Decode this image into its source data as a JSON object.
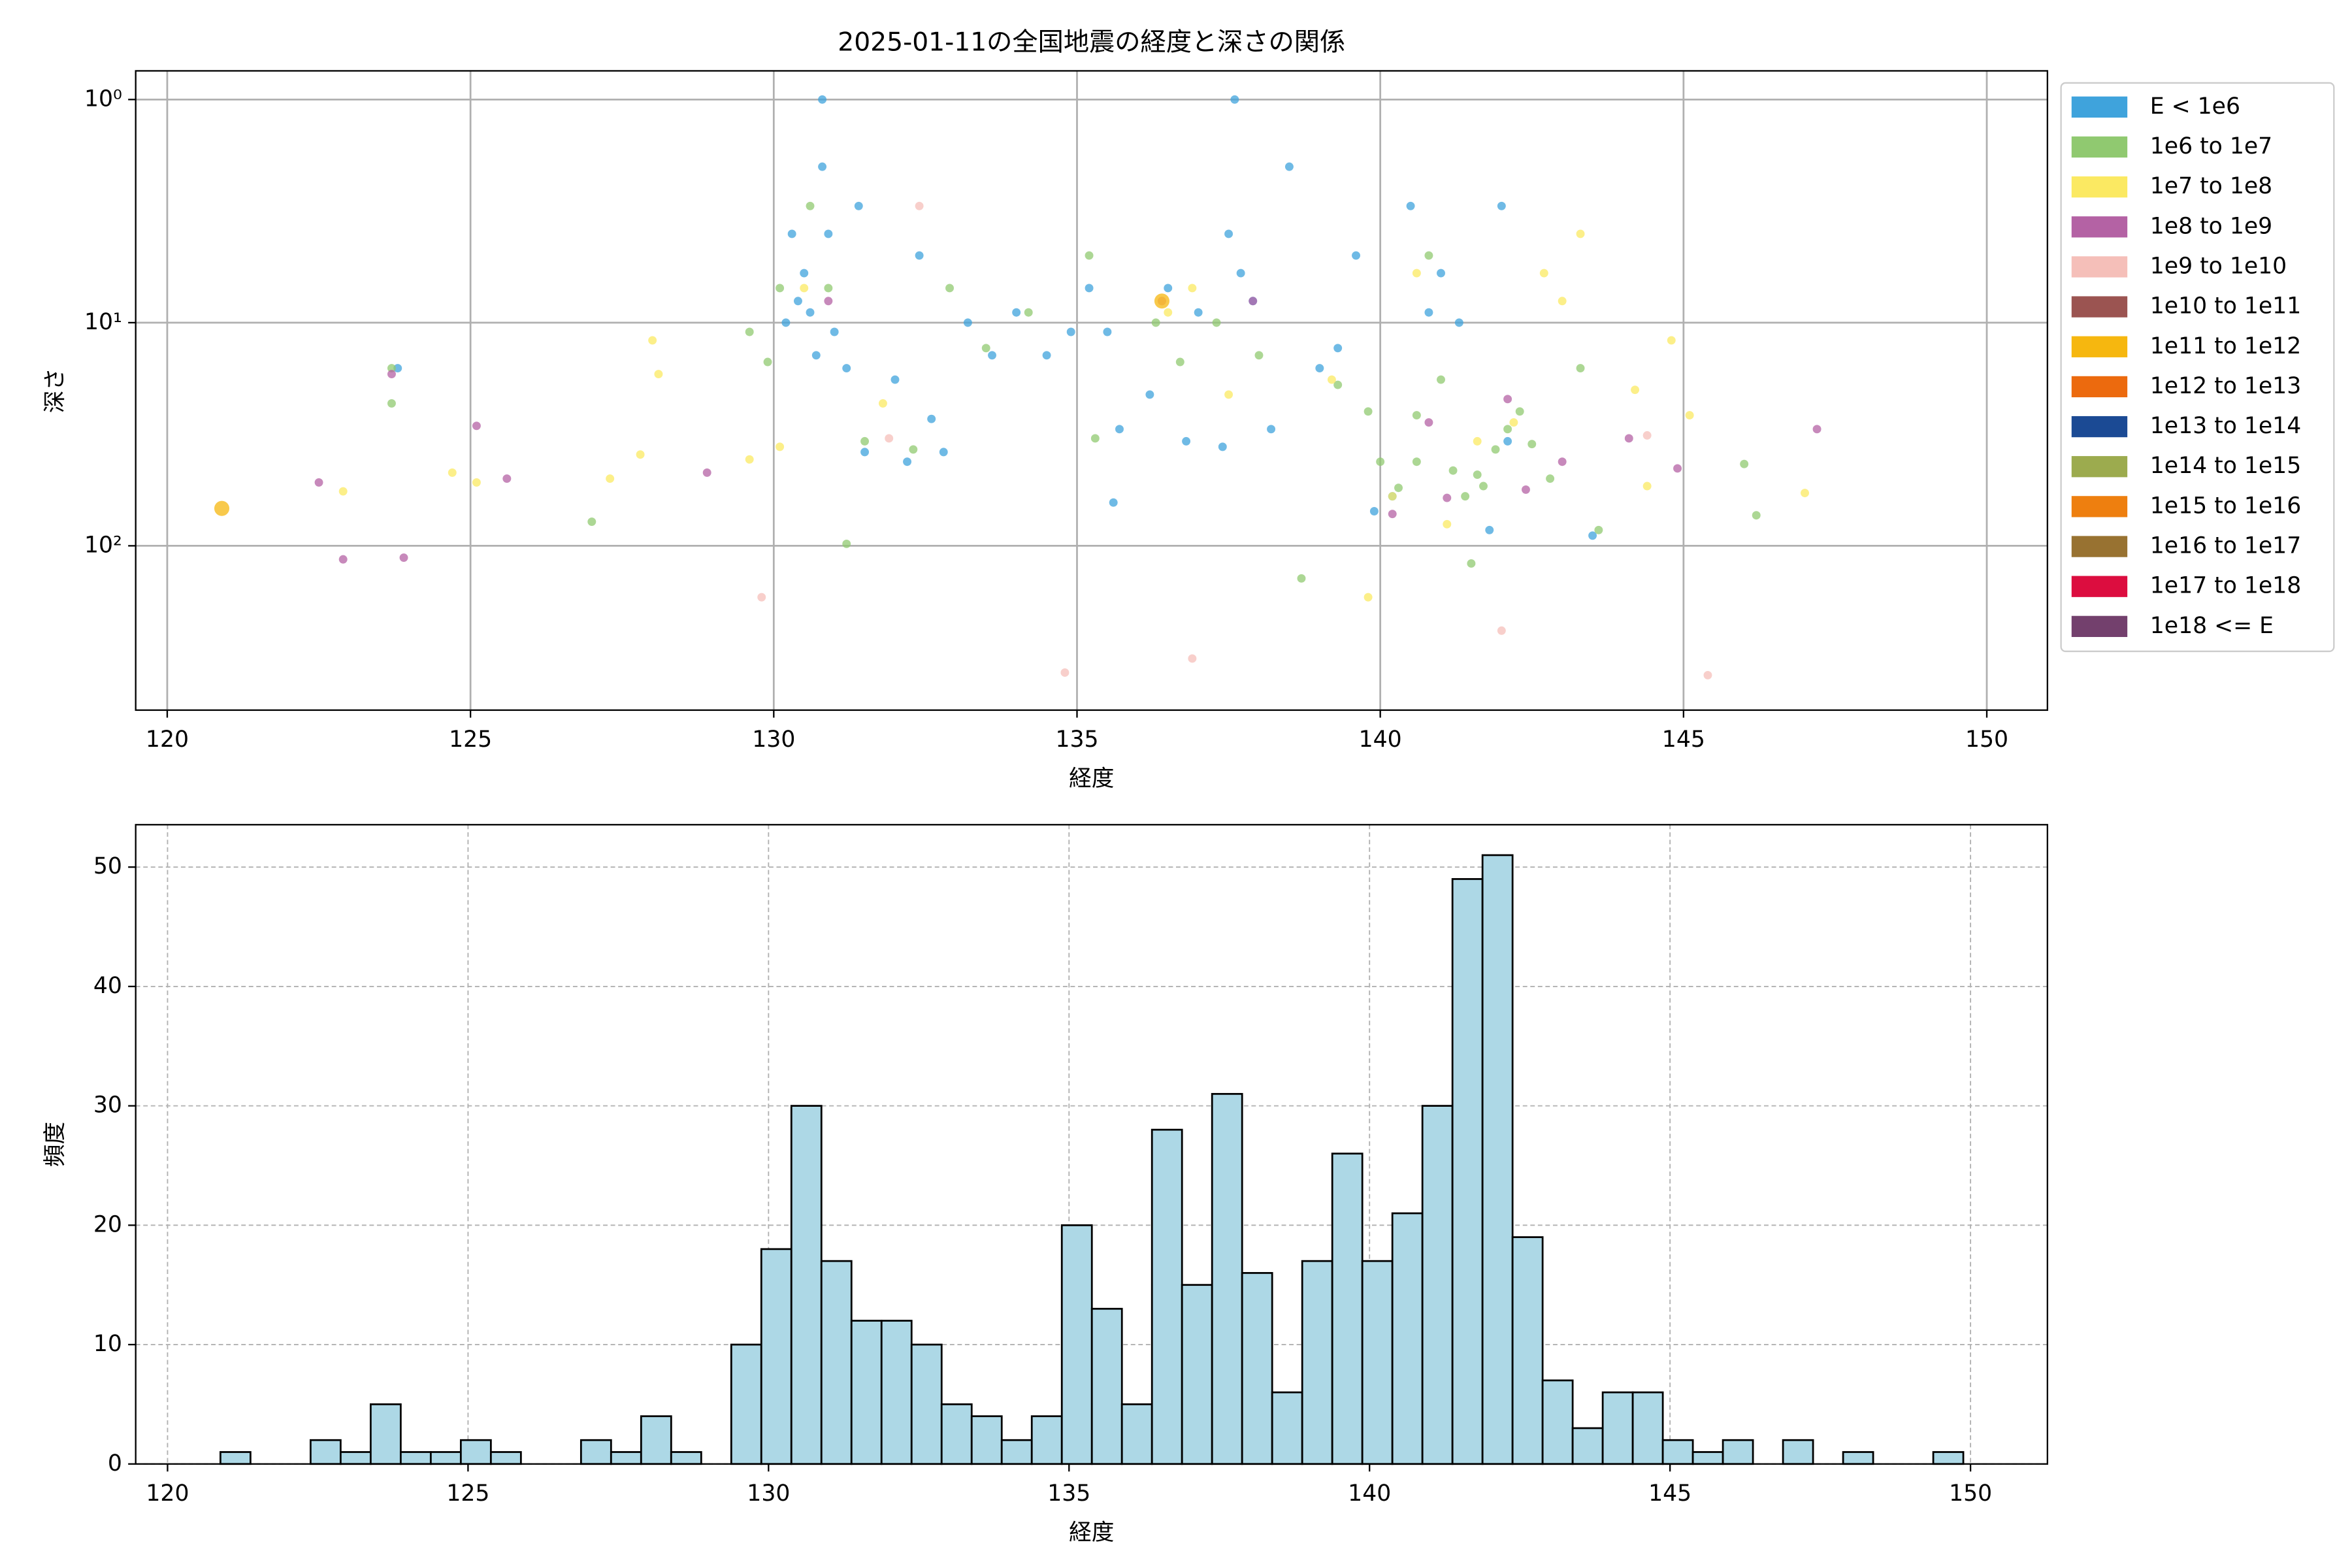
{
  "chart_data": [
    {
      "type": "scatter",
      "title": "2025-01-11の全国地震の経度と深さの関係",
      "xlabel": "経度",
      "ylabel": "深さ",
      "xlim": [
        119.48,
        151.0
      ],
      "xticks": [
        120,
        125,
        130,
        135,
        140,
        145,
        150
      ],
      "ylim": [
        545,
        0.744
      ],
      "log_y": true,
      "yticks": [
        {
          "value": 1,
          "label": "10⁰"
        },
        {
          "value": 10,
          "label": "10¹"
        },
        {
          "value": 100,
          "label": "10²"
        }
      ],
      "grid": true,
      "legend": "outside-right",
      "series": [
        {
          "name": "E < 1e6",
          "color": "#3fa3dc",
          "x": [
            123.8,
            130.2,
            130.5,
            130.6,
            130.8,
            130.8,
            130.9,
            131.0,
            130.3,
            130.4,
            130.7,
            131.2,
            131.4,
            131.5,
            132.0,
            132.2,
            132.4,
            132.6,
            132.8,
            133.2,
            133.6,
            134.0,
            134.5,
            134.9,
            135.2,
            135.5,
            135.7,
            135.6,
            136.2,
            136.5,
            137.0,
            137.5,
            137.6,
            137.7,
            137.9,
            138.2,
            138.5,
            139.0,
            139.3,
            139.6,
            139.9,
            140.2,
            140.5,
            140.8,
            141.0,
            141.3,
            141.8,
            142.0,
            142.1,
            143.5,
            137.4,
            136.8
          ],
          "values": [
            16,
            10,
            6,
            9,
            1,
            2,
            4,
            11,
            4,
            8,
            14,
            16,
            3,
            38,
            18,
            42,
            5,
            27,
            38,
            10,
            14,
            9,
            14,
            11,
            7,
            11,
            30,
            64,
            21,
            7,
            9,
            4,
            1,
            6,
            8,
            30,
            2,
            16,
            13,
            5,
            70,
            60,
            3,
            9,
            6,
            10,
            85,
            3,
            34,
            90,
            36,
            34
          ]
        },
        {
          "name": "1e6 to 1e7",
          "color": "#90c970",
          "x": [
            123.7,
            123.7,
            127.0,
            129.6,
            129.9,
            130.1,
            130.6,
            130.9,
            131.2,
            131.5,
            132.3,
            132.9,
            133.5,
            134.2,
            135.2,
            135.3,
            136.3,
            136.7,
            137.3,
            138.0,
            138.7,
            139.3,
            139.8,
            140.0,
            140.3,
            140.6,
            140.8,
            141.0,
            141.2,
            141.4,
            141.6,
            141.7,
            141.9,
            142.1,
            142.3,
            142.5,
            142.8,
            143.3,
            143.6,
            146.0,
            146.2,
            140.6,
            141.5
          ],
          "values": [
            16,
            23,
            78,
            11,
            15,
            7,
            3,
            7,
            98,
            34,
            37,
            7,
            13,
            9,
            5,
            33,
            10,
            15,
            10,
            14,
            140,
            19,
            25,
            42,
            55,
            42,
            5,
            18,
            46,
            60,
            48,
            54,
            37,
            30,
            25,
            35,
            50,
            16,
            85,
            43,
            73,
            26,
            120
          ]
        },
        {
          "name": "1e7 to 1e8",
          "color": "#fbe962",
          "x": [
            122.9,
            124.7,
            125.1,
            127.3,
            127.8,
            128.0,
            128.1,
            129.6,
            130.1,
            130.5,
            131.8,
            136.5,
            136.9,
            137.5,
            139.2,
            139.8,
            140.2,
            140.6,
            141.1,
            141.6,
            142.2,
            142.7,
            143.0,
            143.3,
            144.2,
            144.4,
            144.8,
            145.1,
            147.0
          ],
          "values": [
            57,
            47,
            52,
            50,
            39,
            12,
            17,
            41,
            36,
            7,
            23,
            9,
            7,
            21,
            18,
            170,
            60,
            6,
            80,
            34,
            28,
            6,
            8,
            4,
            20,
            54,
            12,
            26,
            58
          ]
        },
        {
          "name": "1e8 to 1e9",
          "color": "#b462a4",
          "x": [
            122.5,
            122.9,
            123.7,
            123.9,
            125.1,
            125.6,
            128.9,
            130.9,
            137.9,
            140.2,
            140.8,
            141.1,
            142.1,
            142.4,
            143.0,
            144.1,
            144.9,
            147.2,
            136.4
          ],
          "values": [
            52,
            115,
            17,
            113,
            29,
            50,
            47,
            8,
            8,
            72,
            28,
            61,
            22,
            56,
            42,
            33,
            45,
            30,
            8
          ]
        },
        {
          "name": "1e9 to 1e10",
          "color": "#f5bfb9",
          "x": [
            129.8,
            131.9,
            132.4,
            134.8,
            136.9,
            142.0,
            144.4,
            145.4,
            136.4
          ],
          "values": [
            170,
            33,
            3,
            370,
            320,
            240,
            32,
            380,
            8
          ]
        },
        {
          "name": "1e10 to 1e11",
          "color": "#9b5451",
          "x": [],
          "values": []
        },
        {
          "name": "1e11 to 1e12",
          "color": "#f6b70f",
          "x": [
            120.9,
            136.4
          ],
          "values": [
            68,
            8
          ]
        },
        {
          "name": "1e12 to 1e13",
          "color": "#ec6a0e",
          "x": [],
          "values": []
        },
        {
          "name": "1e13 to 1e14",
          "color": "#1b4a94",
          "x": [],
          "values": []
        },
        {
          "name": "1e14 to 1e15",
          "color": "#9cab4e",
          "x": [],
          "values": []
        },
        {
          "name": "1e15 to 1e16",
          "color": "#ee7f0f",
          "x": [],
          "values": []
        },
        {
          "name": "1e16 to 1e17",
          "color": "#987231",
          "x": [],
          "values": []
        },
        {
          "name": "1e17 to 1e18",
          "color": "#dc0d3f",
          "x": [],
          "values": []
        },
        {
          "name": "1e18 <= E",
          "color": "#73406d",
          "x": [],
          "values": []
        }
      ]
    },
    {
      "type": "histogram",
      "xlabel": "経度",
      "ylabel": "頻度",
      "xlim": [
        119.47,
        151.28
      ],
      "xticks": [
        120,
        125,
        130,
        135,
        140,
        145,
        150
      ],
      "ylim": [
        0,
        53.55
      ],
      "yticks": [
        0,
        10,
        20,
        30,
        40,
        50
      ],
      "grid": true,
      "grid_style": "dashed",
      "color": "#add8e6",
      "edgecolor": "#000000",
      "bins": [
        120.88,
        121.38,
        121.88,
        122.38,
        122.88,
        123.38,
        123.88,
        124.38,
        124.88,
        125.38,
        125.88,
        126.38,
        126.88,
        127.38,
        127.88,
        128.38,
        128.88,
        129.38,
        129.88,
        130.38,
        130.88,
        131.38,
        131.88,
        132.38,
        132.88,
        133.38,
        133.88,
        134.38,
        134.88,
        135.38,
        135.88,
        136.38,
        136.88,
        137.38,
        137.88,
        138.38,
        138.88,
        139.38,
        139.88,
        140.38,
        140.88,
        141.38,
        141.88,
        142.38,
        142.88,
        143.38,
        143.88,
        144.38,
        144.88,
        145.38,
        145.88,
        146.38,
        146.88,
        147.38,
        147.88,
        148.38,
        148.88,
        149.38,
        149.88
      ],
      "values": [
        1,
        0,
        0,
        2,
        1,
        5,
        1,
        1,
        2,
        1,
        0,
        0,
        2,
        1,
        4,
        1,
        0,
        10,
        18,
        30,
        17,
        12,
        12,
        10,
        5,
        4,
        2,
        4,
        20,
        13,
        5,
        28,
        15,
        31,
        16,
        6,
        17,
        26,
        17,
        21,
        30,
        49,
        51,
        19,
        7,
        3,
        6,
        6,
        2,
        1,
        2,
        0,
        2,
        0,
        1,
        0,
        0,
        1
      ]
    }
  ]
}
